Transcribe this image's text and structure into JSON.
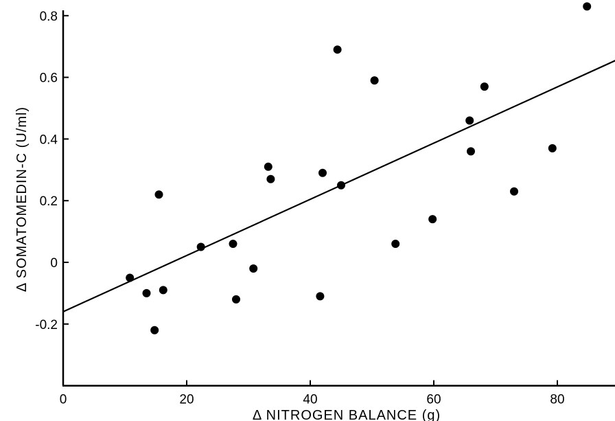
{
  "chart_data": {
    "type": "scatter",
    "xlabel": "Δ NITROGEN BALANCE (g)",
    "ylabel": "Δ SOMATOMEDIN-C (U/ml)",
    "xlim": [
      0,
      90
    ],
    "ylim": [
      -0.4,
      0.8
    ],
    "x_ticks": [
      0,
      20,
      40,
      60,
      80
    ],
    "x_tick_labels": [
      "0",
      "20",
      "40",
      "60",
      "80"
    ],
    "y_ticks": [
      -0.2,
      0,
      0.2,
      0.4,
      0.6,
      0.8
    ],
    "y_tick_labels": [
      "-0.2",
      "0",
      "0.2",
      "0.4",
      "0.6",
      "0.8"
    ],
    "grid": false,
    "points": [
      {
        "x": 10.8,
        "y": -0.05
      },
      {
        "x": 13.5,
        "y": -0.1
      },
      {
        "x": 14.8,
        "y": -0.22
      },
      {
        "x": 15.5,
        "y": 0.22
      },
      {
        "x": 16.2,
        "y": -0.09
      },
      {
        "x": 22.3,
        "y": 0.05
      },
      {
        "x": 27.5,
        "y": 0.06
      },
      {
        "x": 28.0,
        "y": -0.12
      },
      {
        "x": 30.8,
        "y": -0.02
      },
      {
        "x": 33.2,
        "y": 0.31
      },
      {
        "x": 33.6,
        "y": 0.27
      },
      {
        "x": 41.6,
        "y": -0.11
      },
      {
        "x": 42.0,
        "y": 0.29
      },
      {
        "x": 44.4,
        "y": 0.69
      },
      {
        "x": 45.0,
        "y": 0.25
      },
      {
        "x": 50.4,
        "y": 0.59
      },
      {
        "x": 53.8,
        "y": 0.06
      },
      {
        "x": 59.8,
        "y": 0.14
      },
      {
        "x": 65.8,
        "y": 0.46
      },
      {
        "x": 66.0,
        "y": 0.36
      },
      {
        "x": 68.2,
        "y": 0.57
      },
      {
        "x": 73.0,
        "y": 0.23
      },
      {
        "x": 79.2,
        "y": 0.37
      },
      {
        "x": 84.8,
        "y": 0.83
      }
    ],
    "fit_line": {
      "x": [
        0,
        90
      ],
      "y": [
        -0.16,
        0.66
      ]
    }
  }
}
